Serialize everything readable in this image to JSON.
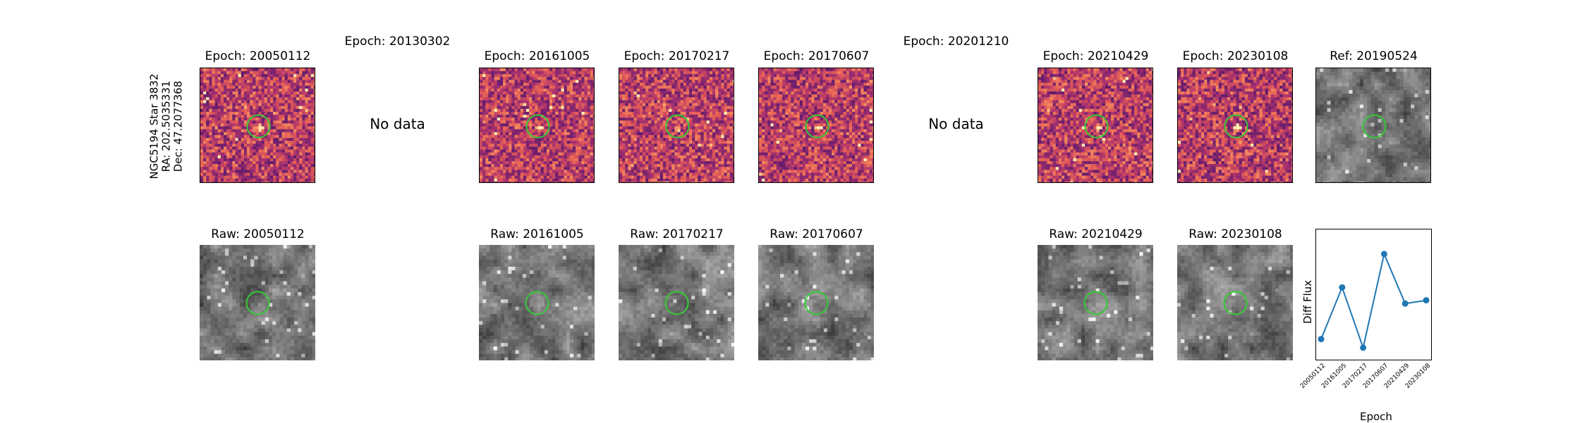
{
  "object_label": [
    "NGC5194 Star 3832",
    "RA: 202.5035331",
    "Dec: 47.2077368"
  ],
  "top_row": [
    {
      "title": "Epoch: 20050112",
      "type": "diff",
      "seed": 11,
      "src": 0.55
    },
    {
      "title": "Epoch: 20130302",
      "type": "nodata",
      "nodata_label": "No data"
    },
    {
      "title": "Epoch: 20161005",
      "type": "diff",
      "seed": 23,
      "src": 1.0
    },
    {
      "title": "Epoch: 20170217",
      "type": "diff",
      "seed": 37,
      "src": 0.3
    },
    {
      "title": "Epoch: 20170607",
      "type": "diff",
      "seed": 41,
      "src": 1.0
    },
    {
      "title": "Epoch: 20201210",
      "type": "nodata",
      "nodata_label": "No data"
    },
    {
      "title": "Epoch: 20210429",
      "type": "diff",
      "seed": 53,
      "src": 0.85
    },
    {
      "title": "Epoch: 20230108",
      "type": "diff",
      "seed": 67,
      "src": 0.9
    },
    {
      "title": "Ref: 20190524",
      "type": "raw",
      "seed": 79
    }
  ],
  "bottom_row": [
    {
      "title": "Raw: 20050112",
      "seed": 101
    },
    {
      "title": "Raw: 20161005",
      "seed": 103
    },
    {
      "title": "Raw: 20170217",
      "seed": 107
    },
    {
      "title": "Raw: 20170607",
      "seed": 109
    },
    {
      "title": "Raw: 20210429",
      "seed": 113
    },
    {
      "title": "Raw: 20230108",
      "seed": 127
    }
  ],
  "colors": {
    "circle": "#33cc33",
    "line": "#1f77b4",
    "frame": "#000000"
  },
  "chart_data": {
    "type": "line",
    "x": [
      "20050112",
      "20161005",
      "20170217",
      "20170607",
      "20210429",
      "20230108"
    ],
    "values": [
      0.08,
      0.56,
      0.0,
      0.87,
      0.41,
      0.44
    ],
    "xlabel": "Epoch",
    "ylabel": "Diff Flux",
    "y_tick_labels": "none"
  }
}
